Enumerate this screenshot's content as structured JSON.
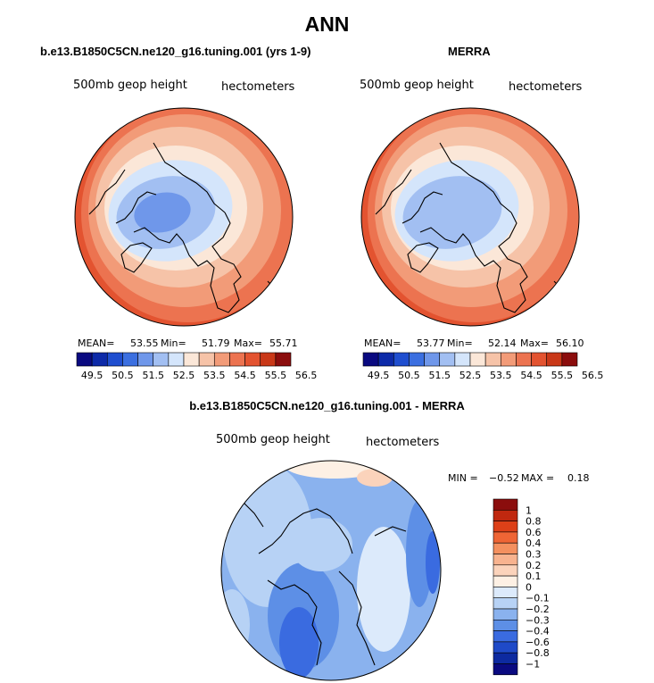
{
  "chart_data": [
    {
      "type": "heatmap",
      "projection": "north-polar-stereographic",
      "title": "b.e13.B1850C5CN.ne120_g16.tuning.001 (yrs 1-9)",
      "field_label": "500mb geop height",
      "units_label": "hectometers",
      "stats": {
        "mean_label": "MEAN=",
        "mean": "53.55",
        "min_label": "Min=",
        "min": "51.79",
        "max_label": "Max=",
        "max": "55.71"
      },
      "colorbar": {
        "orientation": "horizontal",
        "levels": [
          "49.5",
          "50.5",
          "51.5",
          "52.5",
          "53.5",
          "54.5",
          "55.5",
          "56.5"
        ],
        "colors": [
          "#0a0a80",
          "#0d2aa8",
          "#1f4ecf",
          "#3b6fe0",
          "#6f97ea",
          "#a2bff2",
          "#d4e5fb",
          "#fbe7d8",
          "#f6c3a8",
          "#f29b78",
          "#ec7350",
          "#e35330",
          "#c93818",
          "#8b0d0d"
        ]
      }
    },
    {
      "type": "heatmap",
      "projection": "north-polar-stereographic",
      "title": "MERRA",
      "field_label": "500mb geop height",
      "units_label": "hectometers",
      "stats": {
        "mean_label": "MEAN=",
        "mean": "53.77",
        "min_label": "Min=",
        "min": "52.14",
        "max_label": "Max=",
        "max": "56.10"
      },
      "colorbar": {
        "orientation": "horizontal",
        "levels": [
          "49.5",
          "50.5",
          "51.5",
          "52.5",
          "53.5",
          "54.5",
          "55.5",
          "56.5"
        ],
        "colors": [
          "#0a0a80",
          "#0d2aa8",
          "#1f4ecf",
          "#3b6fe0",
          "#6f97ea",
          "#a2bff2",
          "#d4e5fb",
          "#fbe7d8",
          "#f6c3a8",
          "#f29b78",
          "#ec7350",
          "#e35330",
          "#c93818",
          "#8b0d0d"
        ]
      }
    },
    {
      "type": "heatmap",
      "projection": "north-polar-stereographic",
      "title": "b.e13.B1850C5CN.ne120_g16.tuning.001 - MERRA",
      "field_label": "500mb geop height",
      "units_label": "hectometers",
      "stats": {
        "min_label": "MIN =",
        "min": "−0.52",
        "max_label": "MAX =",
        "max": "0.18"
      },
      "colorbar": {
        "orientation": "vertical",
        "levels": [
          "1",
          "0.8",
          "0.6",
          "0.4",
          "0.3",
          "0.2",
          "0.1",
          "0",
          "−0.1",
          "−0.2",
          "−0.3",
          "−0.4",
          "−0.6",
          "−0.8",
          "−1"
        ],
        "colors": [
          "#8b0d0d",
          "#c0280f",
          "#dd4018",
          "#ef6535",
          "#f4905f",
          "#f8b38f",
          "#fbd3bb",
          "#fdf0e4",
          "#dceafb",
          "#b7d2f5",
          "#8ab2ee",
          "#5d8fe6",
          "#3a6be0",
          "#1f4ac8",
          "#0d2aa0",
          "#0a0a80"
        ]
      }
    }
  ],
  "page": {
    "main_title": "ANN"
  }
}
